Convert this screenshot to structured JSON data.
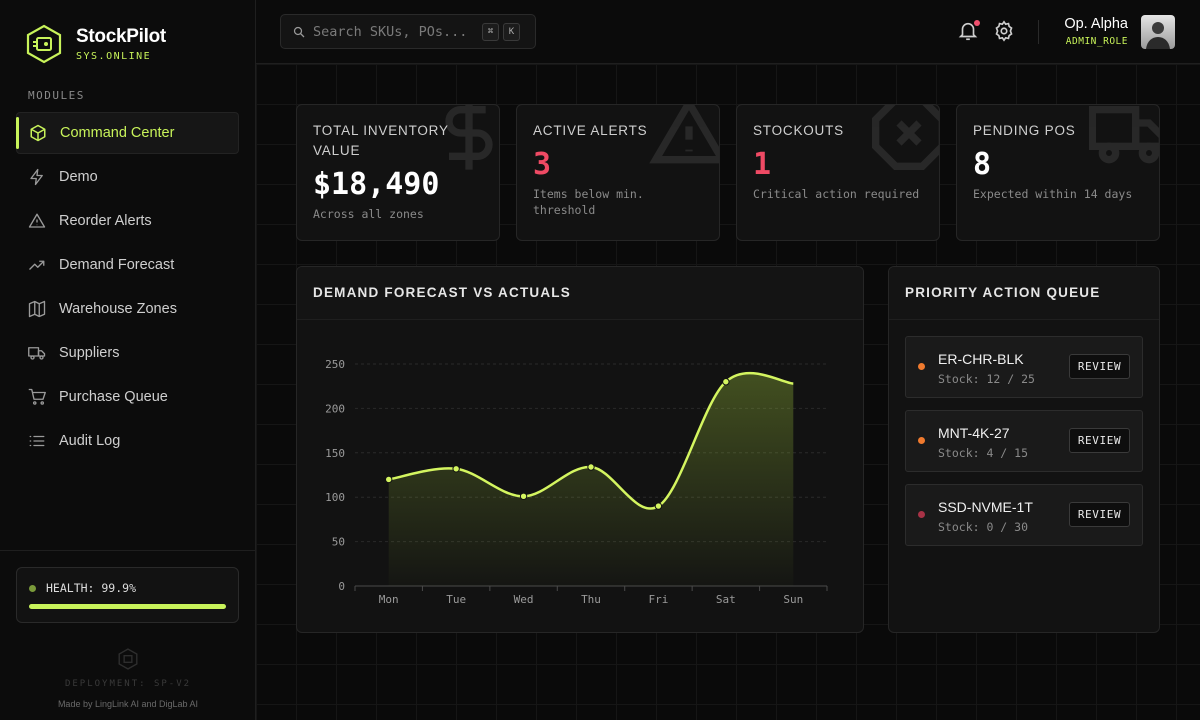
{
  "brand": {
    "name": "StockPilot",
    "status": "SYS.ONLINE"
  },
  "sidebar": {
    "section_label": "MODULES",
    "items": [
      {
        "label": "Command Center",
        "icon": "cube-icon",
        "active": true
      },
      {
        "label": "Demo",
        "icon": "bolt-icon",
        "active": false
      },
      {
        "label": "Reorder Alerts",
        "icon": "warning-icon",
        "active": false
      },
      {
        "label": "Demand Forecast",
        "icon": "trend-icon",
        "active": false
      },
      {
        "label": "Warehouse Zones",
        "icon": "map-icon",
        "active": false
      },
      {
        "label": "Suppliers",
        "icon": "truck-icon",
        "active": false
      },
      {
        "label": "Purchase Queue",
        "icon": "cart-icon",
        "active": false
      },
      {
        "label": "Audit Log",
        "icon": "list-icon",
        "active": false
      }
    ],
    "health": {
      "label": "HEALTH: 99.9%",
      "level": 0.999
    },
    "deployment": "DEPLOYMENT: SP-V2",
    "made_by": "Made by LingLink AI and DigLab AI"
  },
  "topbar": {
    "search_placeholder": "Search SKUs, POs...",
    "kbd": [
      "⌘",
      "K"
    ],
    "user_name": "Op. Alpha",
    "user_role": "ADMIN_ROLE"
  },
  "kpis": [
    {
      "label": "TOTAL INVENTORY VALUE",
      "value": "$18,490",
      "sub": "Across all zones",
      "alert": false,
      "bg_icon": "dollar-icon"
    },
    {
      "label": "ACTIVE ALERTS",
      "value": "3",
      "sub": "Items below min. threshold",
      "alert": true,
      "bg_icon": "warning-icon"
    },
    {
      "label": "STOCKOUTS",
      "value": "1",
      "sub": "Critical action required",
      "alert": true,
      "bg_icon": "x-octagon-icon"
    },
    {
      "label": "PENDING POS",
      "value": "8",
      "sub": "Expected within 14 days",
      "alert": false,
      "bg_icon": "truck-icon"
    }
  ],
  "chart_panel": {
    "title": "DEMAND FORECAST VS ACTUALS"
  },
  "chart_data": {
    "type": "area",
    "categories": [
      "Mon",
      "Tue",
      "Wed",
      "Thu",
      "Fri",
      "Sat",
      "Sun"
    ],
    "series": [
      {
        "values": [
          120,
          132,
          101,
          134,
          90,
          230,
          228
        ]
      }
    ],
    "y_ticks": [
      0,
      50,
      100,
      150,
      200,
      250
    ],
    "ylim": [
      0,
      250
    ],
    "grid": true,
    "line_color": "#d4f560"
  },
  "queue": {
    "title": "PRIORITY ACTION QUEUE",
    "button_label": "REVIEW",
    "items": [
      {
        "sku": "ER-CHR-BLK",
        "stock": "Stock: 12 / 25",
        "status_color": "#f07a2e"
      },
      {
        "sku": "MNT-4K-27",
        "stock": "Stock: 4 / 15",
        "status_color": "#f07a2e"
      },
      {
        "sku": "SSD-NVME-1T",
        "stock": "Stock: 0 / 30",
        "status_color": "#a83246"
      }
    ]
  },
  "colors": {
    "accent": "#c8f35a",
    "alert": "#ef4a64"
  }
}
